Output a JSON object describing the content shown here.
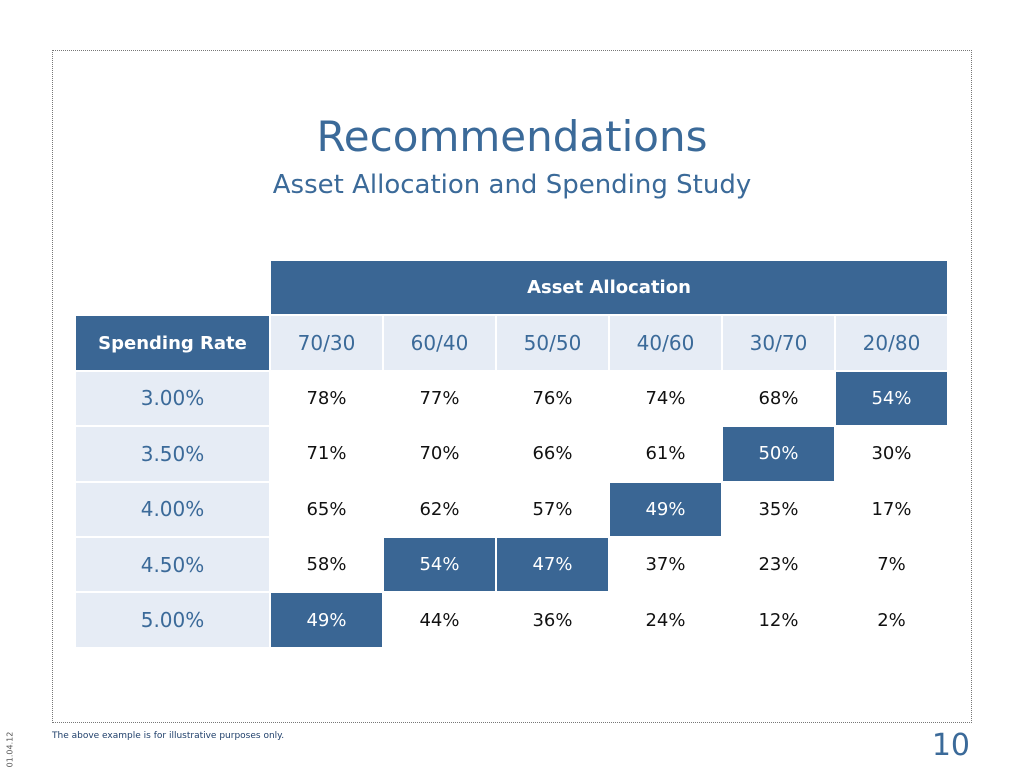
{
  "title": "Recommendations",
  "subtitle": "Asset Allocation and Spending Study",
  "table": {
    "group_header": "Asset Allocation",
    "row_header": "Spending Rate",
    "columns": [
      "70/30",
      "60/40",
      "50/50",
      "40/60",
      "30/70",
      "20/80"
    ],
    "rows": [
      {
        "label": "3.00%",
        "cells": [
          "78%",
          "77%",
          "76%",
          "74%",
          "68%",
          "54%"
        ]
      },
      {
        "label": "3.50%",
        "cells": [
          "71%",
          "70%",
          "66%",
          "61%",
          "50%",
          "30%"
        ]
      },
      {
        "label": "4.00%",
        "cells": [
          "65%",
          "62%",
          "57%",
          "49%",
          "35%",
          "17%"
        ]
      },
      {
        "label": "4.50%",
        "cells": [
          "58%",
          "54%",
          "47%",
          "37%",
          "23%",
          "7%"
        ]
      },
      {
        "label": "5.00%",
        "cells": [
          "49%",
          "44%",
          "36%",
          "24%",
          "12%",
          "2%"
        ]
      }
    ],
    "highlighted_cells": [
      [
        0,
        5
      ],
      [
        1,
        4
      ],
      [
        2,
        3
      ],
      [
        3,
        1
      ],
      [
        3,
        2
      ],
      [
        4,
        0
      ]
    ]
  },
  "footnote": "The above example is for illustrative purposes only.",
  "page_number": "10",
  "date": "01.04.12"
}
